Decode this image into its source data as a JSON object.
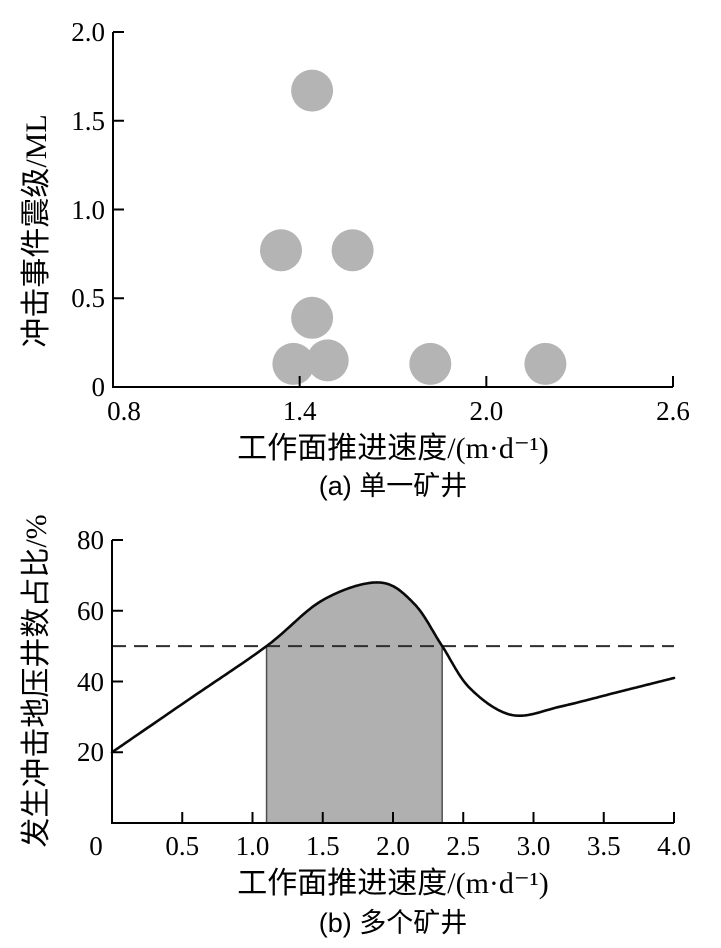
{
  "chart_data": [
    {
      "panel": "a",
      "type": "scatter",
      "caption": "(a) 单一矿井",
      "xlabel": "工作面推进速度/(m·d⁻¹)",
      "ylabel": "冲击事件震级/ML",
      "xlim": [
        0.8,
        2.6
      ],
      "ylim": [
        0,
        2.0
      ],
      "x_ticks": [
        0.8,
        1.4,
        2.0,
        2.6
      ],
      "x_tick_labels": [
        "0.8",
        "1.4",
        "2.0",
        "2.6"
      ],
      "y_ticks": [
        0,
        0.5,
        1.0,
        1.5,
        2.0
      ],
      "y_tick_labels": [
        "0",
        "0.5",
        "1.0",
        "1.5",
        "2.0"
      ],
      "grid": false,
      "legend": null,
      "marker": {
        "shape": "circle",
        "color": "#b4b4b4",
        "radius_px": 21
      },
      "points": [
        {
          "x": 1.44,
          "y": 1.67
        },
        {
          "x": 1.34,
          "y": 0.77
        },
        {
          "x": 1.57,
          "y": 0.77
        },
        {
          "x": 1.44,
          "y": 0.39
        },
        {
          "x": 1.38,
          "y": 0.13
        },
        {
          "x": 1.49,
          "y": 0.15
        },
        {
          "x": 1.82,
          "y": 0.13
        },
        {
          "x": 2.19,
          "y": 0.13
        }
      ]
    },
    {
      "panel": "b",
      "type": "area",
      "caption": "(b) 多个矿井",
      "xlabel": "工作面推进速度/(m·d⁻¹)",
      "ylabel": "发生冲击地压井数占比/%",
      "xlim": [
        0,
        4.0
      ],
      "ylim": [
        0,
        80
      ],
      "x_ticks": [
        0,
        0.5,
        1.0,
        1.5,
        2.0,
        2.5,
        3.0,
        3.5,
        4.0
      ],
      "x_tick_labels": [
        "0",
        "0.5",
        "1.0",
        "1.5",
        "2.0",
        "2.5",
        "3.0",
        "3.5",
        "4.0"
      ],
      "y_ticks": [
        20,
        40,
        60,
        80
      ],
      "y_tick_labels": [
        "20",
        "40",
        "60",
        "80"
      ],
      "grid": false,
      "legend": null,
      "curve_color": "#0a0a0a",
      "curve_points": [
        {
          "x": 0.0,
          "y": 20
        },
        {
          "x": 0.55,
          "y": 35
        },
        {
          "x": 1.1,
          "y": 50
        },
        {
          "x": 1.5,
          "y": 63
        },
        {
          "x": 1.9,
          "y": 68
        },
        {
          "x": 2.15,
          "y": 62
        },
        {
          "x": 2.35,
          "y": 50
        },
        {
          "x": 2.55,
          "y": 38
        },
        {
          "x": 2.85,
          "y": 30.5
        },
        {
          "x": 3.2,
          "y": 33
        },
        {
          "x": 3.6,
          "y": 37
        },
        {
          "x": 4.0,
          "y": 41
        }
      ],
      "threshold_line": {
        "value": 50,
        "style": "dashed",
        "color": "#2e2e2e"
      },
      "shaded_region": {
        "x_start": 1.1,
        "x_end": 2.35,
        "fill": "#b0b0b0",
        "edge_color": "#4f4f4f"
      }
    }
  ]
}
